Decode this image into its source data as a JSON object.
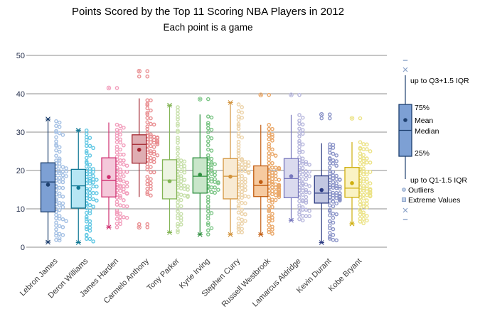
{
  "title": "Points Scored by the Top 11 Scoring NBA Players in 2012",
  "subtitle": "Each point is a game",
  "chart_data": {
    "type": "box",
    "orientation": "vertical",
    "ylim": [
      0,
      50
    ],
    "yticks": [
      0,
      10,
      20,
      30,
      40,
      50
    ],
    "grid": true,
    "legend_position": "right",
    "players": [
      {
        "name": "Lebron James",
        "n_games": 76,
        "whisker_low": 1.3,
        "q1": 9.2,
        "median": 17.0,
        "mean": 16.3,
        "q3": 22.0,
        "whisker_high": 33.4,
        "cap_top": true,
        "cap_bottom": true,
        "extremes_high": [],
        "outliers_high": [],
        "outliers_low": [],
        "extremes_low": [],
        "stroke": "#1d3f6e",
        "box_fill": "#7da0d4",
        "dot_color": "#a4c0e4"
      },
      {
        "name": "Deron Williams",
        "n_games": 70,
        "whisker_low": 1.2,
        "q1": 10.2,
        "median": 16.0,
        "mean": 15.5,
        "q3": 20.3,
        "whisker_high": 30.5,
        "cap_top": true,
        "cap_bottom": true,
        "extremes_high": [],
        "outliers_high": [],
        "outliers_low": [],
        "extremes_low": [],
        "stroke": "#0e7693",
        "box_fill": "#b6e6f4",
        "dot_color": "#62c8e4"
      },
      {
        "name": "James Harden",
        "n_games": 78,
        "whisker_low": 5.2,
        "q1": 13.1,
        "median": 17.4,
        "mean": 18.3,
        "q3": 23.3,
        "whisker_high": 32.5,
        "cap_top": false,
        "cap_bottom": true,
        "extremes_high": [
          41.5
        ],
        "outliers_high": [],
        "outliers_low": [],
        "extremes_low": [],
        "stroke": "#cf2f70",
        "box_fill": "#f4c8da",
        "dot_color": "#f29ebc"
      },
      {
        "name": "Carmelo Anthony",
        "n_games": 67,
        "whisker_low": 13.1,
        "q1": 21.9,
        "median": 26.8,
        "mean": 25.4,
        "q3": 29.3,
        "whisker_high": 38.8,
        "cap_top": false,
        "cap_bottom": false,
        "extremes_high": [
          45.9
        ],
        "outliers_high": [
          44.5
        ],
        "outliers_low": [
          6.0
        ],
        "extremes_low": [
          5.2
        ],
        "stroke": "#a3242e",
        "box_fill": "#dfadb2",
        "dot_color": "#e98f92"
      },
      {
        "name": "Tony Parker",
        "n_games": 66,
        "whisker_low": 3.8,
        "q1": 12.6,
        "median": 17.5,
        "mean": 17.2,
        "q3": 22.8,
        "whisker_high": 37.0,
        "cap_top": true,
        "cap_bottom": true,
        "extremes_high": [],
        "outliers_high": [],
        "outliers_low": [],
        "extremes_low": [],
        "stroke": "#82b454",
        "box_fill": "#edf4e2",
        "dot_color": "#c8e0ab"
      },
      {
        "name": "Kyrie Irving",
        "n_games": 59,
        "whisker_low": 3.3,
        "q1": 14.1,
        "median": 18.5,
        "mean": 18.9,
        "q3": 23.3,
        "whisker_high": 34.6,
        "cap_top": false,
        "cap_bottom": true,
        "extremes_high": [
          38.6
        ],
        "outliers_high": [],
        "outliers_low": [],
        "extremes_low": [],
        "stroke": "#2f9040",
        "box_fill": "#c9e6ca",
        "dot_color": "#7dc687"
      },
      {
        "name": "Stephen Curry",
        "n_games": 78,
        "whisker_low": 3.3,
        "q1": 12.6,
        "median": 18.5,
        "mean": 18.4,
        "q3": 23.1,
        "whisker_high": 37.7,
        "cap_top": true,
        "cap_bottom": true,
        "extremes_high": [],
        "outliers_high": [],
        "outliers_low": [],
        "extremes_low": [],
        "stroke": "#d3943d",
        "box_fill": "#f8ead3",
        "dot_color": "#ecd3a9"
      },
      {
        "name": "Russell Westbrook",
        "n_games": 82,
        "whisker_low": 3.3,
        "q1": 13.2,
        "median": 16.1,
        "mean": 17.0,
        "q3": 21.2,
        "whisker_high": 31.9,
        "cap_top": false,
        "cap_bottom": true,
        "extremes_high": [
          39.7
        ],
        "outliers_high": [],
        "outliers_low": [],
        "extremes_low": [],
        "stroke": "#c25d11",
        "box_fill": "#f6caa0",
        "dot_color": "#eaa869"
      },
      {
        "name": "Lamarcus Aldridge",
        "n_games": 74,
        "whisker_low": 7.0,
        "q1": 12.9,
        "median": 17.9,
        "mean": 18.5,
        "q3": 23.1,
        "whisker_high": 34.5,
        "cap_top": false,
        "cap_bottom": true,
        "extremes_high": [
          39.7
        ],
        "outliers_high": [],
        "outliers_low": [],
        "extremes_low": [],
        "stroke": "#7878bd",
        "box_fill": "#dadaee",
        "dot_color": "#b7b7dd"
      },
      {
        "name": "Kevin Durant",
        "n_games": 81,
        "whisker_low": 1.2,
        "q1": 11.5,
        "median": 14.1,
        "mean": 14.9,
        "q3": 18.6,
        "whisker_high": 27.1,
        "cap_top": false,
        "cap_bottom": true,
        "extremes_high": [
          34.6
        ],
        "outliers_high": [
          33.6
        ],
        "outliers_low": [],
        "extremes_low": [],
        "stroke": "#2b3a82",
        "box_fill": "#c2c7e1",
        "dot_color": "#8d96c9"
      },
      {
        "name": "Kobe Bryant",
        "n_games": 78,
        "whisker_low": 6.1,
        "q1": 13.0,
        "median": 15.4,
        "mean": 16.7,
        "q3": 20.8,
        "whisker_high": 27.4,
        "cap_top": false,
        "cap_bottom": true,
        "extremes_high": [
          33.6
        ],
        "outliers_high": [],
        "outliers_low": [],
        "extremes_low": [],
        "stroke": "#cfaf0e",
        "box_fill": "#faf3c4",
        "dot_color": "#ece387"
      }
    ]
  },
  "legend": {
    "q3_whisker_label": "up to Q3+1.5 IQR",
    "q3_pct_label": "75%",
    "mean_label": "Mean",
    "median_label": "Median",
    "q1_pct_label": "25%",
    "q1_whisker_label": "up to Q1-1.5 IQR",
    "outliers_label": "Outliers",
    "extremes_label": "Extreme Values",
    "box_fill": "#7da0d4",
    "box_stroke": "#1d3f6e",
    "marker_color": "#8aa2c8",
    "marker_fill": "#c3d3ea"
  },
  "axes": {
    "grid_color": "#8e8e8e",
    "ytick_color": "#26304d",
    "xlabel_color": "#3a3a3a"
  }
}
